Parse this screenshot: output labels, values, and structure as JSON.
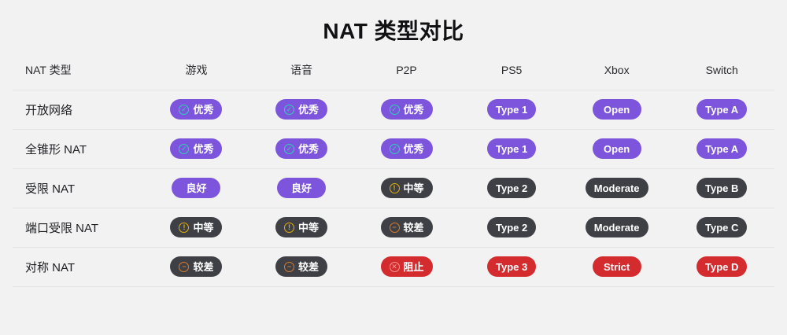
{
  "title": "NAT 类型对比",
  "columns": [
    {
      "label": "NAT 类型",
      "key": "nat-type"
    },
    {
      "label": "游戏",
      "key": "game"
    },
    {
      "label": "语音",
      "key": "voice"
    },
    {
      "label": "P2P",
      "key": "p2p"
    },
    {
      "label": "PS5",
      "key": "ps5"
    },
    {
      "label": "Xbox",
      "key": "xbox"
    },
    {
      "label": "Switch",
      "key": "switch"
    }
  ],
  "rows": [
    {
      "label": "开放网络",
      "cells": [
        {
          "text": "优秀",
          "variant": "purple",
          "icon": "check-circle"
        },
        {
          "text": "优秀",
          "variant": "purple",
          "icon": "check-circle"
        },
        {
          "text": "优秀",
          "variant": "purple",
          "icon": "check-circle"
        },
        {
          "text": "Type 1",
          "variant": "purple"
        },
        {
          "text": "Open",
          "variant": "purple"
        },
        {
          "text": "Type A",
          "variant": "purple"
        }
      ]
    },
    {
      "label": "全锥形 NAT",
      "cells": [
        {
          "text": "优秀",
          "variant": "purple",
          "icon": "check-circle"
        },
        {
          "text": "优秀",
          "variant": "purple",
          "icon": "check-circle"
        },
        {
          "text": "优秀",
          "variant": "purple",
          "icon": "check-circle"
        },
        {
          "text": "Type 1",
          "variant": "purple"
        },
        {
          "text": "Open",
          "variant": "purple"
        },
        {
          "text": "Type A",
          "variant": "purple"
        }
      ]
    },
    {
      "label": "受限 NAT",
      "cells": [
        {
          "text": "良好",
          "variant": "purple"
        },
        {
          "text": "良好",
          "variant": "purple"
        },
        {
          "text": "中等",
          "variant": "dark",
          "icon": "warning-circle"
        },
        {
          "text": "Type 2",
          "variant": "dark"
        },
        {
          "text": "Moderate",
          "variant": "dark"
        },
        {
          "text": "Type B",
          "variant": "dark"
        }
      ]
    },
    {
      "label": "端口受限 NAT",
      "cells": [
        {
          "text": "中等",
          "variant": "dark",
          "icon": "warning-circle"
        },
        {
          "text": "中等",
          "variant": "dark",
          "icon": "warning-circle"
        },
        {
          "text": "较差",
          "variant": "dark",
          "icon": "minus-circle"
        },
        {
          "text": "Type 2",
          "variant": "dark"
        },
        {
          "text": "Moderate",
          "variant": "dark"
        },
        {
          "text": "Type C",
          "variant": "dark"
        }
      ]
    },
    {
      "label": "对称 NAT",
      "cells": [
        {
          "text": "较差",
          "variant": "dark",
          "icon": "minus-circle"
        },
        {
          "text": "较差",
          "variant": "dark",
          "icon": "minus-circle"
        },
        {
          "text": "阻止",
          "variant": "red",
          "icon": "block-circle"
        },
        {
          "text": "Type 3",
          "variant": "red"
        },
        {
          "text": "Strict",
          "variant": "red"
        },
        {
          "text": "Type D",
          "variant": "red"
        }
      ]
    }
  ],
  "icon_glyphs": {
    "check-circle": "✓",
    "warning-circle": "!",
    "minus-circle": "−",
    "block-circle": "✕"
  },
  "colors": {
    "background": "#f1f2f1",
    "divider": "#e3e4e3",
    "badge_purple": "#7d55dd",
    "badge_dark": "#3f4045",
    "badge_red": "#d42b2e",
    "icon_check": "#2fd0b5",
    "icon_warning": "#e3b008",
    "icon_minus": "#d97c2e",
    "icon_block": "#f49a9a",
    "badge_text": "#ffffff",
    "title_text": "#111113"
  }
}
